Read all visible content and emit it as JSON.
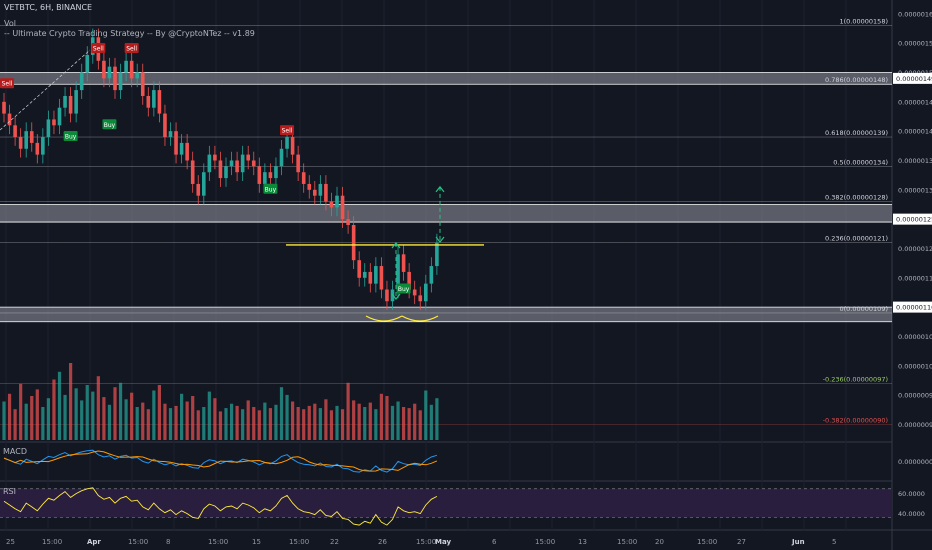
{
  "header": {
    "symbol_line": "VETBTC, 6H, BINANCE",
    "vol_label": "Vol",
    "strategy_label": "-- Ultimate Crypto Trading Strategy -- By @CryptoNTez -- v1.89"
  },
  "colors": {
    "background": "#131722",
    "up_candle": "#26a69a",
    "down_candle": "#ef5350",
    "support_band": "#9598a1",
    "trendline": "#ffeb3b",
    "fib_line": "#787b86",
    "macd_line": "#2196f3",
    "signal_line": "#ff9800",
    "rsi_line": "#ffeb3b",
    "rsi_band": "#2a1e3f",
    "buy_tag": "#0b8a3a",
    "sell_tag": "#b71c1c"
  },
  "price_axis": {
    "ticks": [
      "0.00000160",
      "0.00000155",
      "0.00000150",
      "0.00000145",
      "0.00000140",
      "0.00000135",
      "0.00000130",
      "0.00000125",
      "0.00000120",
      "0.00000115",
      "0.00000110",
      "0.00000105",
      "0.00000100",
      "0.00000095",
      "0.00000090"
    ],
    "highlighted": [
      "0.00000149",
      "0.00000125",
      "0.00000110"
    ],
    "macd_tick": "0.00000000",
    "rsi_ticks": [
      "60.0000",
      "40.0000"
    ]
  },
  "fib_levels": [
    {
      "label": "1(0.00000158)",
      "price": 1.58e-06
    },
    {
      "label": "0.786(0.00000148)",
      "price": 1.48e-06
    },
    {
      "label": "0.618(0.00000139)",
      "price": 1.39e-06
    },
    {
      "label": "0.5(0.00000134)",
      "price": 1.34e-06
    },
    {
      "label": "0.382(0.00000128)",
      "price": 1.28e-06
    },
    {
      "label": "0.236(0.00000121)",
      "price": 1.21e-06
    },
    {
      "label": "0(0.00000109)",
      "price": 1.09e-06
    },
    {
      "label": "-0.236(0.00000097)",
      "price": 9.7e-07
    },
    {
      "label": "-0.382(0.00000090)",
      "price": 9e-07
    }
  ],
  "zones": [
    {
      "low": 1.48e-06,
      "high": 1.5e-06
    },
    {
      "low": 1.245e-06,
      "high": 1.275e-06
    },
    {
      "low": 1.075e-06,
      "high": 1.1e-06
    }
  ],
  "signals": [
    {
      "type": "Sell",
      "label": "Sell",
      "bar": -1,
      "price": 1.48e-06
    },
    {
      "type": "Sell",
      "label": "Sell",
      "bar": 17,
      "price": 1.54e-06
    },
    {
      "type": "Sell",
      "label": "Sell",
      "bar": 23,
      "price": 1.54e-06
    },
    {
      "type": "Buy",
      "label": "Buy",
      "bar": 12,
      "price": 1.39e-06
    },
    {
      "type": "Buy",
      "label": "Buy",
      "bar": 19,
      "price": 1.41e-06
    },
    {
      "type": "Sell",
      "label": "Sell",
      "bar": 51,
      "price": 1.4e-06
    },
    {
      "type": "Buy",
      "label": "Buy",
      "bar": 48,
      "price": 1.3e-06
    },
    {
      "type": "Buy",
      "label": "Buy",
      "bar": 72,
      "price": 1.13e-06
    }
  ],
  "neckline_price": 1.206e-06,
  "target_price": 1.305e-06,
  "x_axis": {
    "labels": [
      "25",
      "15:00",
      "Apr",
      "15:00",
      "8",
      "15:00",
      "15",
      "15:00",
      "22",
      "26",
      "15:00",
      "May",
      "6",
      "15:00",
      "13",
      "15:00",
      "20",
      "15:00",
      "27",
      "Jun",
      "5"
    ],
    "bold": [
      "Apr",
      "May",
      "Jun"
    ]
  },
  "panes": {
    "macd_label": "MACD",
    "rsi_label": "RSI"
  },
  "chart_data": {
    "type": "candlestick",
    "closes": [
      1.43,
      1.41,
      1.39,
      1.37,
      1.4,
      1.38,
      1.36,
      1.39,
      1.42,
      1.41,
      1.44,
      1.46,
      1.43,
      1.47,
      1.5,
      1.53,
      1.56,
      1.52,
      1.49,
      1.51,
      1.47,
      1.5,
      1.52,
      1.49,
      1.5,
      1.46,
      1.44,
      1.47,
      1.43,
      1.39,
      1.4,
      1.36,
      1.38,
      1.35,
      1.31,
      1.29,
      1.33,
      1.36,
      1.35,
      1.32,
      1.34,
      1.35,
      1.33,
      1.36,
      1.35,
      1.34,
      1.31,
      1.33,
      1.32,
      1.34,
      1.37,
      1.39,
      1.36,
      1.33,
      1.31,
      1.3,
      1.29,
      1.31,
      1.28,
      1.27,
      1.29,
      1.25,
      1.24,
      1.18,
      1.15,
      1.16,
      1.14,
      1.17,
      1.13,
      1.11,
      1.13,
      1.19,
      1.16,
      1.13,
      1.12,
      1.11,
      1.14,
      1.17,
      1.21
    ],
    "volume": [
      0.35,
      0.42,
      0.28,
      0.51,
      0.33,
      0.4,
      0.46,
      0.3,
      0.38,
      0.55,
      0.62,
      0.41,
      0.7,
      0.47,
      0.36,
      0.5,
      0.44,
      0.58,
      0.39,
      0.32,
      0.48,
      0.52,
      0.37,
      0.43,
      0.3,
      0.34,
      0.28,
      0.45,
      0.5,
      0.33,
      0.29,
      0.31,
      0.42,
      0.35,
      0.4,
      0.27,
      0.3,
      0.44,
      0.38,
      0.26,
      0.29,
      0.33,
      0.31,
      0.28,
      0.36,
      0.3,
      0.27,
      0.34,
      0.29,
      0.32,
      0.48,
      0.41,
      0.35,
      0.3,
      0.28,
      0.31,
      0.33,
      0.29,
      0.37,
      0.27,
      0.31,
      0.28,
      0.52,
      0.36,
      0.33,
      0.3,
      0.34,
      0.28,
      0.42,
      0.4,
      0.31,
      0.35,
      0.3,
      0.29,
      0.33,
      0.27,
      0.45,
      0.32,
      0.38
    ],
    "rsi": [
      52,
      48,
      44,
      41,
      50,
      46,
      42,
      49,
      55,
      53,
      58,
      62,
      56,
      60,
      63,
      65,
      66,
      58,
      54,
      56,
      50,
      55,
      57,
      52,
      53,
      46,
      43,
      50,
      44,
      40,
      43,
      38,
      42,
      39,
      35,
      34,
      44,
      49,
      47,
      42,
      46,
      47,
      44,
      50,
      48,
      45,
      40,
      44,
      42,
      47,
      55,
      58,
      50,
      44,
      41,
      40,
      38,
      43,
      37,
      36,
      41,
      34,
      33,
      28,
      27,
      31,
      29,
      38,
      30,
      27,
      33,
      46,
      42,
      40,
      41,
      39,
      48,
      54,
      57
    ],
    "ylim": [
      8.7e-07,
      1.61e-06
    ],
    "rsi_range": [
      30,
      70
    ]
  }
}
